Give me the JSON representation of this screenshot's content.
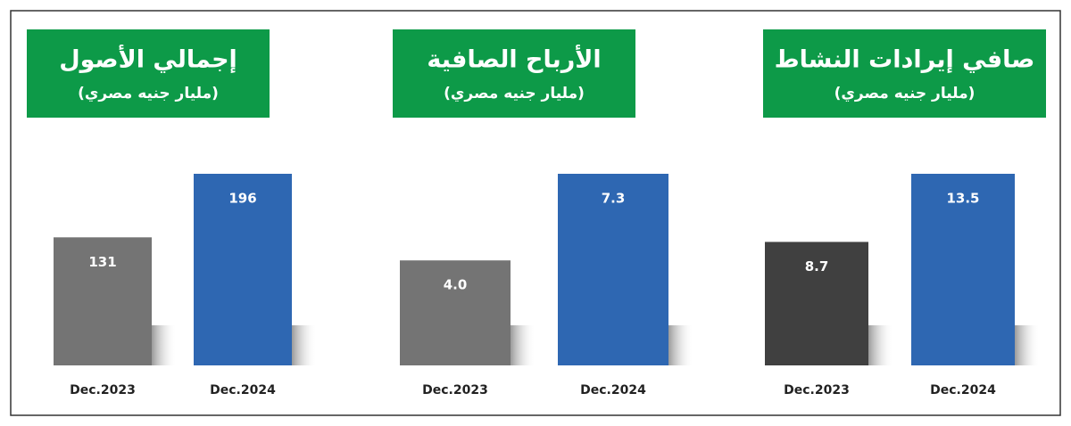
{
  "chart_data": [
    {
      "type": "bar",
      "title": "إجمالي الأصول",
      "subtitle": "(مليار جنيه مصري)",
      "categories": [
        "Dec.2023",
        "Dec.2024"
      ],
      "values": [
        131,
        196
      ],
      "colors": [
        "#747474",
        "#2e67b2"
      ]
    },
    {
      "type": "bar",
      "title": "الأرباح الصافية",
      "subtitle": "(مليار جنيه مصري)",
      "categories": [
        "Dec.2023",
        "Dec.2024"
      ],
      "values": [
        4.0,
        7.3
      ],
      "value_labels": [
        "4.0",
        "7.3"
      ],
      "colors": [
        "#747474",
        "#2e67b2"
      ]
    },
    {
      "type": "bar",
      "title": "صافي إيرادات النشاط",
      "subtitle": "(مليار جنيه مصري)",
      "categories": [
        "Dec.2023",
        "Dec.2024"
      ],
      "values": [
        8.7,
        13.5
      ],
      "colors": [
        "#404040",
        "#2e67b2"
      ]
    }
  ]
}
